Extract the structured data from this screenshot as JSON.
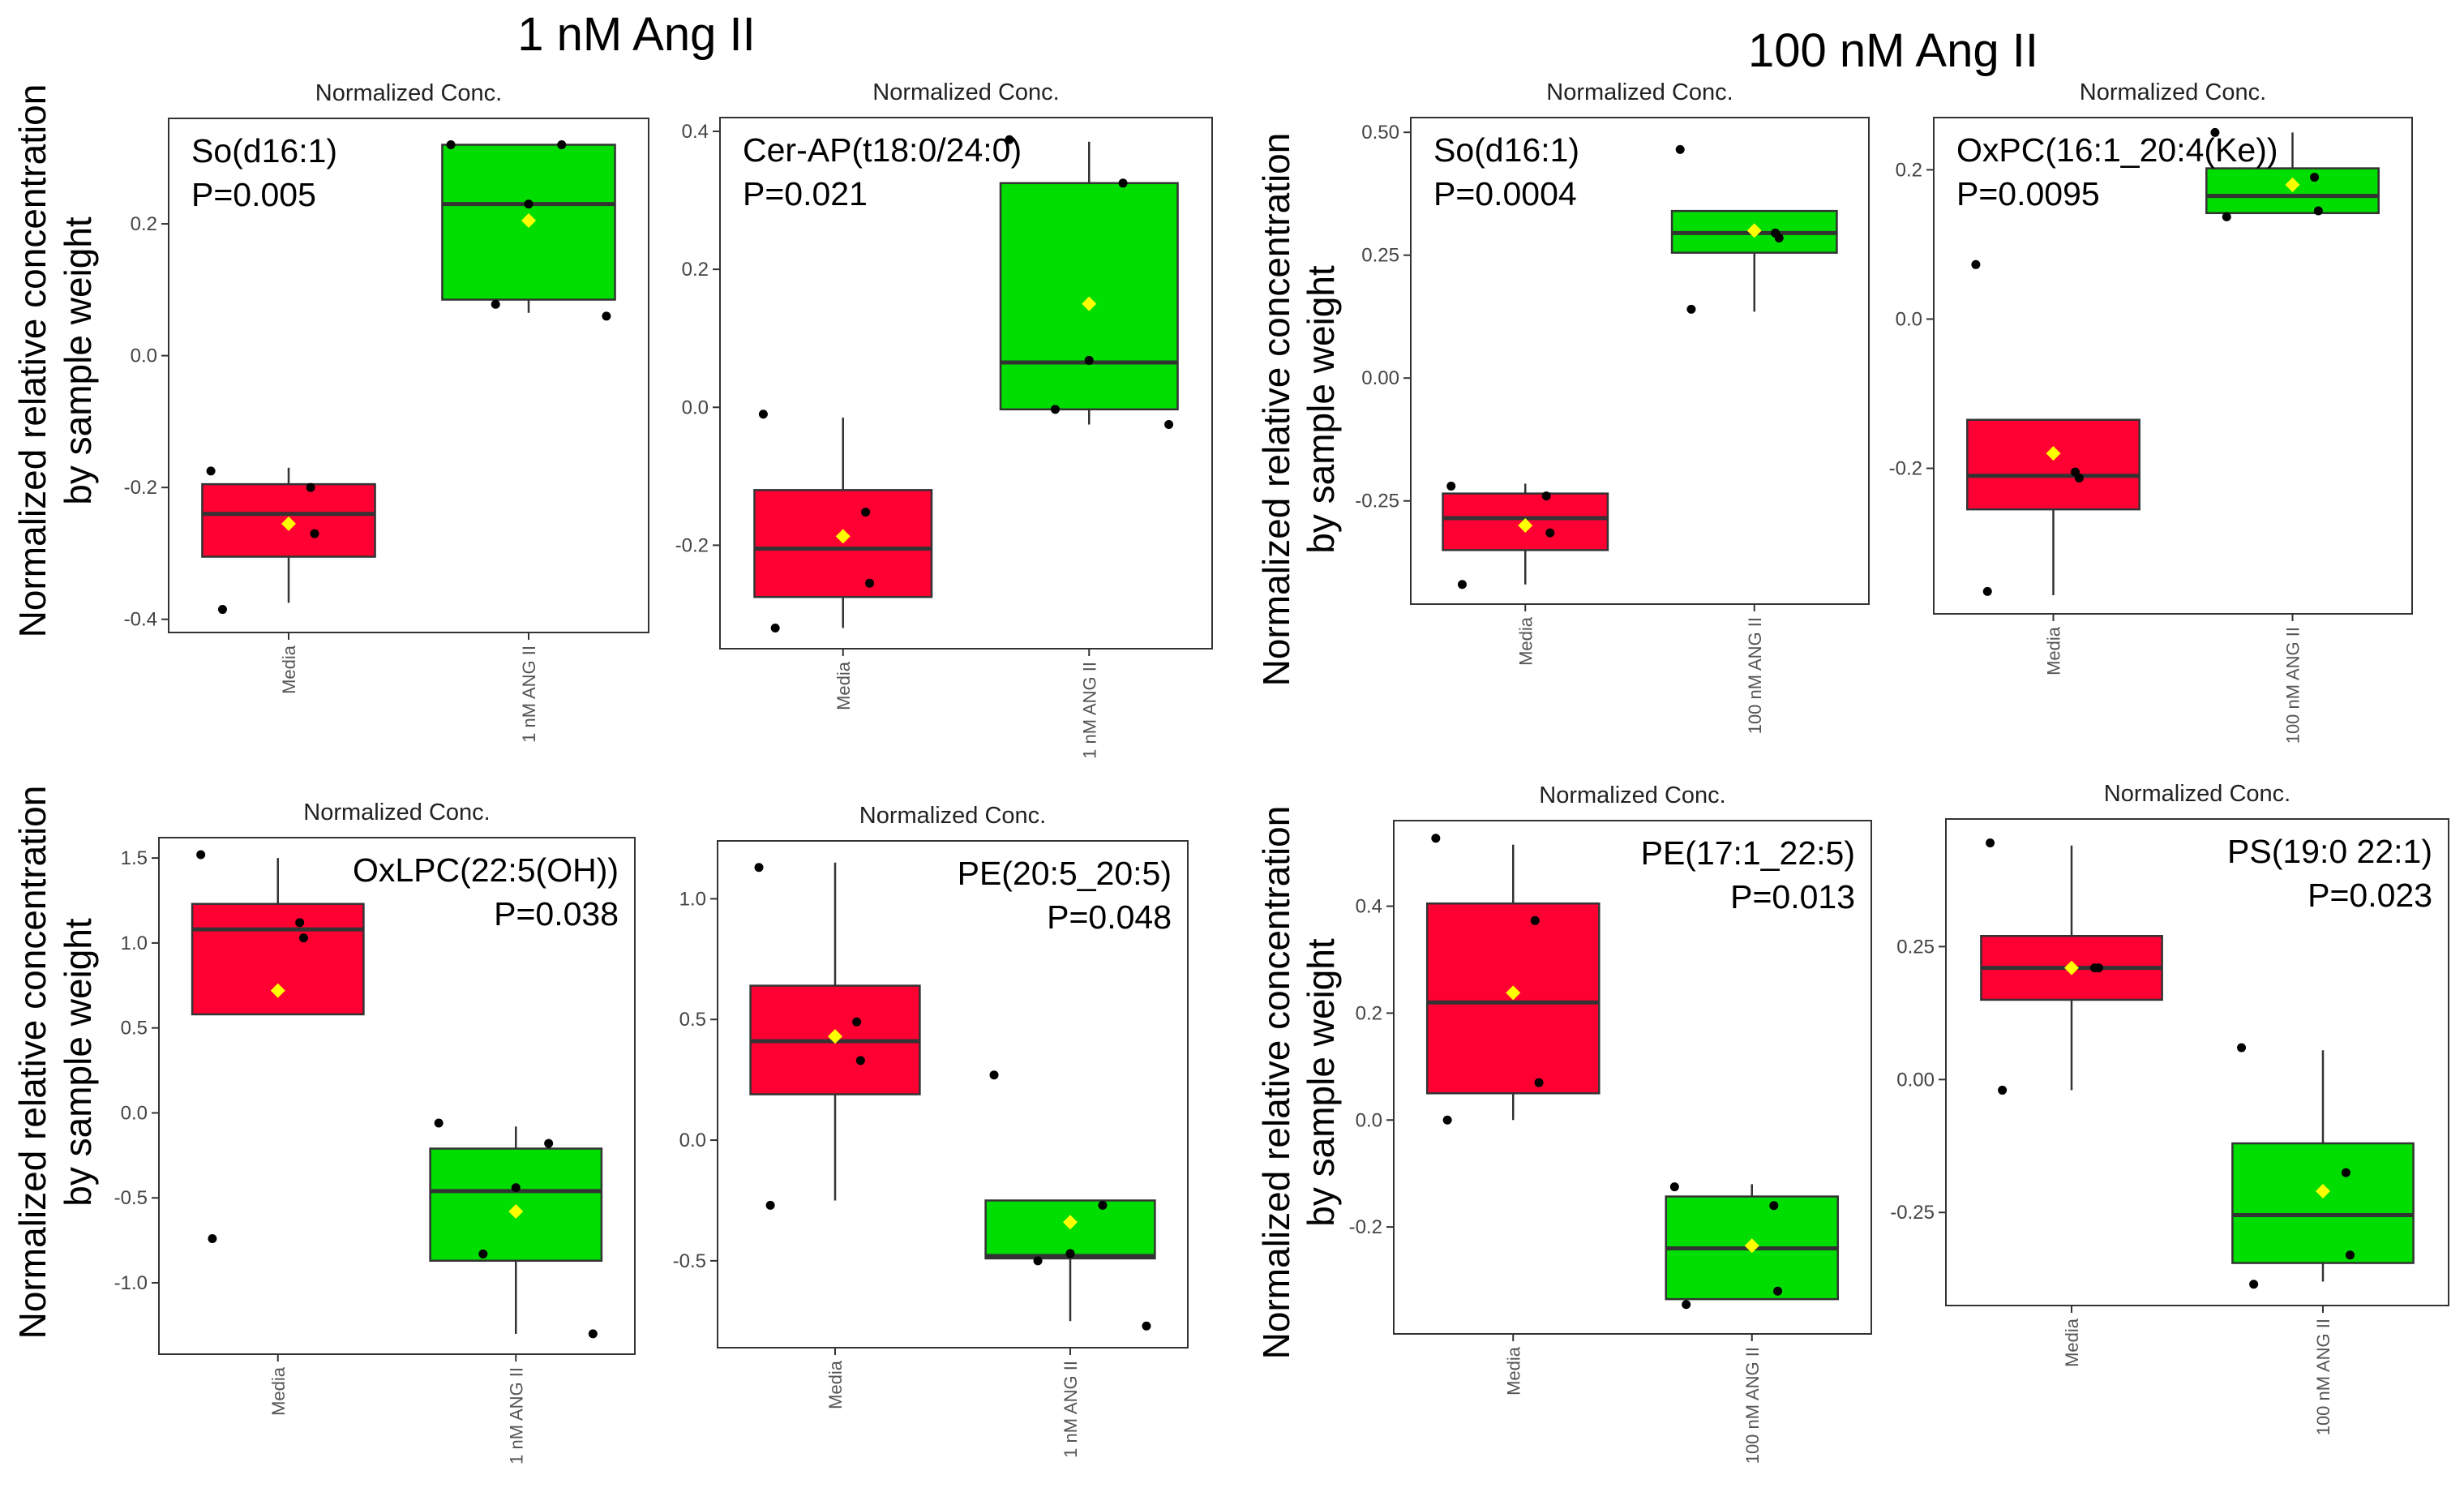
{
  "colors": {
    "media": "#ff0033",
    "ang": "#00dd00",
    "mean": "#ffff00",
    "point": "#000000",
    "line": "#333333"
  },
  "groups": [
    {
      "title": "1 nM Ang II"
    },
    {
      "title": "100 nM Ang II"
    }
  ],
  "ylabel": {
    "line1": "Normalized relative concentration",
    "line2": "by sample weight"
  },
  "chart_data": [
    {
      "type": "box",
      "title": "Normalized Conc.",
      "lipid": "So(d16:1)",
      "pvalue": "P=0.005",
      "categories": [
        "Media",
        "1 nM ANG II"
      ],
      "ylim": [
        -0.42,
        0.36
      ],
      "yticks": [
        -0.4,
        -0.2,
        0.0,
        0.2
      ],
      "yticklabels": [
        "-0.4",
        "-0.2",
        "0.0",
        "0.2"
      ],
      "boxes": [
        {
          "q1": -0.305,
          "median": -0.24,
          "q3": -0.195,
          "whisker_low": -0.375,
          "whisker_high": -0.17,
          "mean": -0.255,
          "points": [
            -0.175,
            -0.2,
            -0.27,
            -0.385
          ]
        },
        {
          "q1": 0.085,
          "median": 0.23,
          "q3": 0.32,
          "whisker_low": 0.065,
          "whisker_high": 0.32,
          "mean": 0.205,
          "points": [
            0.32,
            0.32,
            0.23,
            0.078,
            0.06
          ]
        }
      ]
    },
    {
      "type": "box",
      "title": "Normalized Conc.",
      "lipid": "Cer-AP(t18:0/24:0)",
      "pvalue": "P=0.021",
      "categories": [
        "Media",
        "1 nM ANG II"
      ],
      "ylim": [
        -0.35,
        0.42
      ],
      "yticks": [
        -0.2,
        0.0,
        0.2,
        0.4
      ],
      "yticklabels": [
        "-0.2",
        "0.0",
        "0.2",
        "0.4"
      ],
      "boxes": [
        {
          "q1": -0.275,
          "median": -0.205,
          "q3": -0.12,
          "whisker_low": -0.32,
          "whisker_high": -0.015,
          "mean": -0.187,
          "points": [
            -0.01,
            -0.152,
            -0.255,
            -0.32
          ]
        },
        {
          "q1": -0.003,
          "median": 0.065,
          "q3": 0.325,
          "whisker_low": -0.025,
          "whisker_high": 0.385,
          "mean": 0.15,
          "points": [
            0.388,
            0.325,
            0.068,
            -0.003,
            -0.025
          ]
        }
      ]
    },
    {
      "type": "box",
      "title": "Normalized Conc.",
      "lipid": "So(d16:1)",
      "pvalue": "P=0.0004",
      "categories": [
        "Media",
        "100 nM ANG II"
      ],
      "ylim": [
        -0.46,
        0.53
      ],
      "yticks": [
        -0.25,
        0.0,
        0.25,
        0.5
      ],
      "yticklabels": [
        "-0.25",
        "0.00",
        "0.25",
        "0.50"
      ],
      "boxes": [
        {
          "q1": -0.35,
          "median": -0.285,
          "q3": -0.235,
          "whisker_low": -0.42,
          "whisker_high": -0.215,
          "mean": -0.3,
          "points": [
            -0.22,
            -0.24,
            -0.315,
            -0.42
          ]
        },
        {
          "q1": 0.255,
          "median": 0.295,
          "q3": 0.34,
          "whisker_low": 0.135,
          "whisker_high": 0.34,
          "mean": 0.3,
          "points": [
            0.465,
            0.295,
            0.285,
            0.14
          ]
        }
      ]
    },
    {
      "type": "box",
      "title": "Normalized Conc.",
      "lipid": "OxPC(16:1_20:4(Ke))",
      "pvalue": "P=0.0095",
      "categories": [
        "Media",
        "100 nM ANG II"
      ],
      "ylim": [
        -0.395,
        0.27
      ],
      "yticks": [
        -0.2,
        0.0,
        0.2
      ],
      "yticklabels": [
        "-0.2",
        "0.0",
        "0.2"
      ],
      "boxes": [
        {
          "q1": -0.255,
          "median": -0.21,
          "q3": -0.135,
          "whisker_low": -0.37,
          "whisker_high": -0.135,
          "mean": -0.18,
          "points": [
            0.073,
            -0.205,
            -0.213,
            -0.365
          ]
        },
        {
          "q1": 0.142,
          "median": 0.165,
          "q3": 0.202,
          "whisker_low": 0.142,
          "whisker_high": 0.25,
          "mean": 0.18,
          "points": [
            0.25,
            0.19,
            0.145,
            0.137
          ]
        }
      ]
    },
    {
      "type": "box",
      "title": "Normalized Conc.",
      "lipid": "OxLPC(22:5(OH))",
      "pvalue": "P=0.038",
      "categories": [
        "Media",
        "1 nM ANG II"
      ],
      "ylim": [
        -1.42,
        1.62
      ],
      "yticks": [
        -1.0,
        -0.5,
        0.0,
        0.5,
        1.0,
        1.5
      ],
      "yticklabels": [
        "-1.0",
        "-0.5",
        "0.0",
        "0.5",
        "1.0",
        "1.5"
      ],
      "boxes": [
        {
          "q1": 0.58,
          "median": 1.08,
          "q3": 1.23,
          "whisker_low": 0.58,
          "whisker_high": 1.5,
          "mean": 0.72,
          "points": [
            1.52,
            1.12,
            1.03,
            -0.74
          ]
        },
        {
          "q1": -0.87,
          "median": -0.46,
          "q3": -0.21,
          "whisker_low": -1.3,
          "whisker_high": -0.08,
          "mean": -0.58,
          "points": [
            -0.06,
            -0.18,
            -0.44,
            -0.83,
            -1.3
          ]
        }
      ]
    },
    {
      "type": "box",
      "title": "Normalized Conc.",
      "lipid": "PE(20:5_20:5)",
      "pvalue": "P=0.048",
      "categories": [
        "Media",
        "1 nM ANG II"
      ],
      "ylim": [
        -0.86,
        1.24
      ],
      "yticks": [
        -0.5,
        0.0,
        0.5,
        1.0
      ],
      "yticklabels": [
        "-0.5",
        "0.0",
        "0.5",
        "1.0"
      ],
      "boxes": [
        {
          "q1": 0.19,
          "median": 0.41,
          "q3": 0.64,
          "whisker_low": -0.25,
          "whisker_high": 1.15,
          "mean": 0.43,
          "points": [
            1.13,
            0.49,
            0.33,
            -0.27
          ]
        },
        {
          "q1": -0.49,
          "median": -0.48,
          "q3": -0.25,
          "whisker_low": -0.75,
          "whisker_high": -0.25,
          "mean": -0.34,
          "points": [
            0.27,
            -0.27,
            -0.47,
            -0.5,
            -0.77
          ]
        }
      ]
    },
    {
      "type": "box",
      "title": "Normalized Conc.",
      "lipid": "PE(17:1_22:5)",
      "pvalue": "P=0.013",
      "categories": [
        "Media",
        "100 nM ANG II"
      ],
      "ylim": [
        -0.4,
        0.56
      ],
      "yticks": [
        -0.2,
        0.0,
        0.2,
        0.4
      ],
      "yticklabels": [
        "-0.2",
        "0.0",
        "0.2",
        "0.4"
      ],
      "boxes": [
        {
          "q1": 0.05,
          "median": 0.22,
          "q3": 0.405,
          "whisker_low": 0.0,
          "whisker_high": 0.515,
          "mean": 0.238,
          "points": [
            0.527,
            0.373,
            0.07,
            0.0
          ]
        },
        {
          "q1": -0.335,
          "median": -0.24,
          "q3": -0.143,
          "whisker_low": -0.335,
          "whisker_high": -0.12,
          "mean": -0.235,
          "points": [
            -0.125,
            -0.16,
            -0.32,
            -0.345
          ]
        }
      ]
    },
    {
      "type": "box",
      "title": "Normalized Conc.",
      "lipid": "PS(19:0 22:1)",
      "pvalue": "P=0.023",
      "categories": [
        "Media",
        "100 nM ANG II"
      ],
      "ylim": [
        -0.425,
        0.49
      ],
      "yticks": [
        -0.25,
        0.0,
        0.25
      ],
      "yticklabels": [
        "-0.25",
        "0.00",
        "0.25"
      ],
      "boxes": [
        {
          "q1": 0.15,
          "median": 0.21,
          "q3": 0.27,
          "whisker_low": -0.02,
          "whisker_high": 0.44,
          "mean": 0.21,
          "points": [
            0.445,
            0.21,
            0.21,
            -0.02
          ]
        },
        {
          "q1": -0.345,
          "median": -0.255,
          "q3": -0.12,
          "whisker_low": -0.38,
          "whisker_high": 0.055,
          "mean": -0.21,
          "points": [
            0.06,
            -0.175,
            -0.33,
            -0.385
          ]
        }
      ]
    }
  ]
}
